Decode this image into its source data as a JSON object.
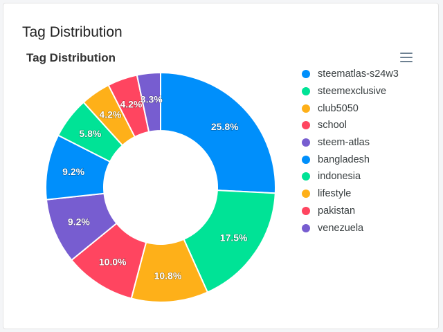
{
  "card": {
    "title": "Tag Distribution"
  },
  "chart_data": {
    "type": "pie",
    "variant": "donut",
    "title": "Tag Distribution",
    "categories": [
      "steematlas-s24w3",
      "steemexclusive",
      "club5050",
      "school",
      "steem-atlas",
      "bangladesh",
      "indonesia",
      "lifestyle",
      "pakistan",
      "venezuela"
    ],
    "values": [
      25.8,
      17.5,
      10.8,
      10.0,
      9.2,
      9.2,
      5.8,
      4.2,
      4.2,
      3.3
    ],
    "labels": [
      "25.8%",
      "17.5%",
      "10.8%",
      "10.0%",
      "9.2%",
      "9.2%",
      "5.8%",
      "4.2%",
      "4.2%",
      "3.3%"
    ],
    "colors": [
      "#008FFB",
      "#00E396",
      "#FEB019",
      "#FF4560",
      "#775DD0",
      "#008FFB",
      "#00E396",
      "#FEB019",
      "#FF4560",
      "#775DD0"
    ],
    "legend_position": "right"
  }
}
